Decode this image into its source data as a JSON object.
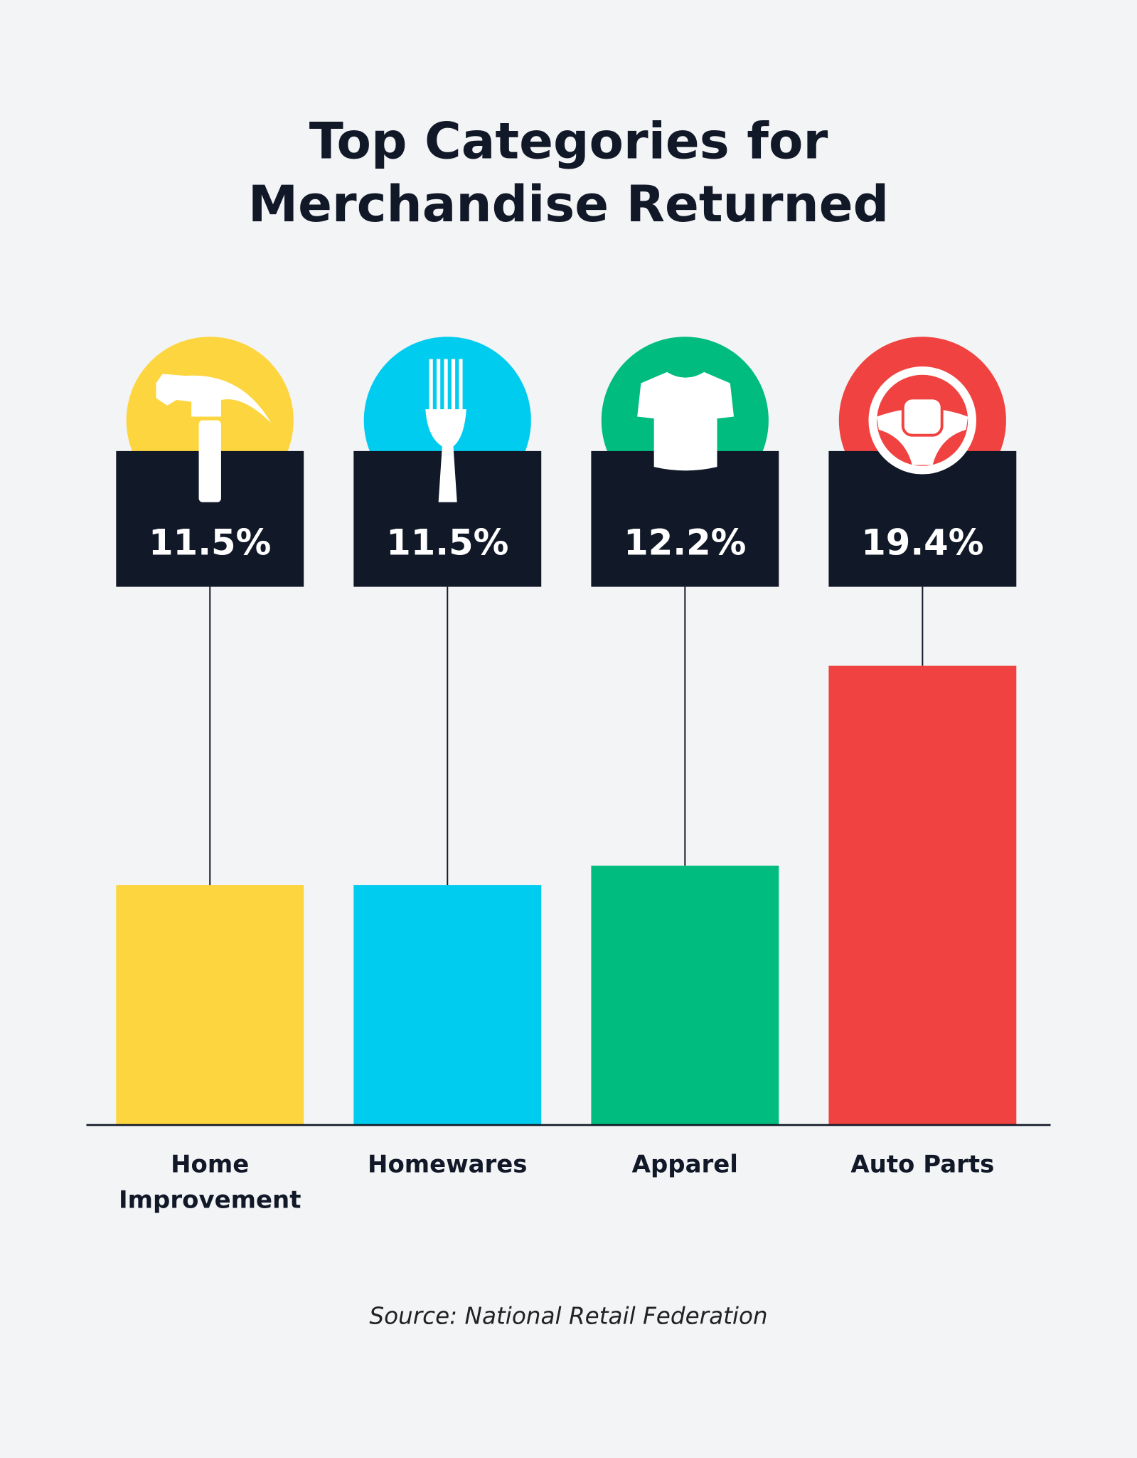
{
  "chart_data": {
    "type": "bar",
    "title": "Top Categories for Merchandise Returned",
    "categories": [
      "Home Improvement",
      "Homewares",
      "Apparel",
      "Auto Parts"
    ],
    "values": [
      11.5,
      11.5,
      12.2,
      19.4
    ],
    "value_labels": [
      "11.5%",
      "11.5%",
      "12.2%",
      "19.4%"
    ],
    "colors": [
      "#fdd53f",
      "#00ccef",
      "#00bc7e",
      "#f04341"
    ],
    "source": "Source: National Retail Federation"
  }
}
